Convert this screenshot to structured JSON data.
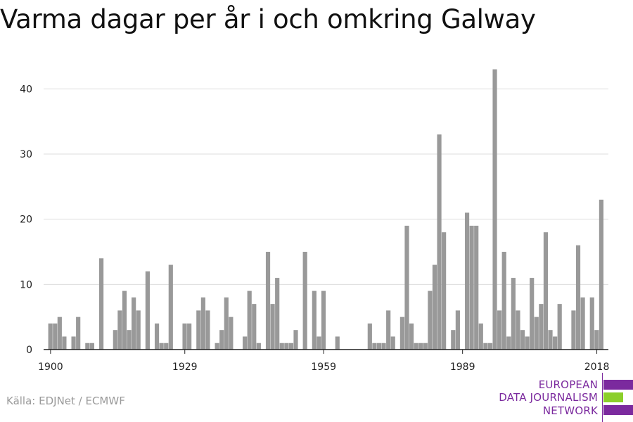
{
  "title": "Varma dagar per år i och omkring Galway",
  "source": "Källa: EDJNet / ECMWF",
  "logo": {
    "line1": "EUROPEAN",
    "line2": "DATA JOURNALISM",
    "line3": "NETWORK",
    "colors": {
      "purple": "#7b2a9e",
      "green": "#8bcf2a"
    }
  },
  "colors": {
    "bar": "#999999",
    "grid": "#dddddd",
    "axis": "#222222"
  },
  "chart_data": {
    "type": "bar",
    "title": "Varma dagar per år i och omkring Galway",
    "xlabel": "",
    "ylabel": "",
    "ylim": [
      0,
      45
    ],
    "yticks": [
      0,
      10,
      20,
      30,
      40
    ],
    "xlim": [
      1899,
      2020
    ],
    "xticks": [
      1900,
      1929,
      1959,
      1989,
      2018
    ],
    "grid": true,
    "series": [
      {
        "x": [
          1900,
          1901,
          1902,
          1903,
          1905,
          1906,
          1908,
          1909,
          1911,
          1914,
          1915,
          1916,
          1917,
          1918,
          1919,
          1921,
          1923,
          1924,
          1925,
          1926,
          1929,
          1930,
          1932,
          1933,
          1934,
          1936,
          1937,
          1938,
          1939,
          1942,
          1943,
          1944,
          1945,
          1947,
          1948,
          1949,
          1950,
          1951,
          1952,
          1953,
          1955,
          1957,
          1958,
          1959,
          1962,
          1969,
          1970,
          1971,
          1972,
          1973,
          1974,
          1976,
          1977,
          1978,
          1979,
          1980,
          1981,
          1982,
          1983,
          1984,
          1985,
          1987,
          1988,
          1990,
          1991,
          1992,
          1993,
          1994,
          1995,
          1996,
          1997,
          1998,
          1999,
          2000,
          2001,
          2002,
          2003,
          2004,
          2005,
          2006,
          2007,
          2008,
          2009,
          2010,
          2013,
          2014,
          2015,
          2017,
          2018,
          2019
        ],
        "values": [
          4,
          4,
          5,
          2,
          2,
          5,
          1,
          1,
          14,
          3,
          6,
          9,
          3,
          8,
          6,
          12,
          4,
          1,
          1,
          13,
          4,
          4,
          6,
          8,
          6,
          1,
          3,
          8,
          5,
          2,
          9,
          7,
          1,
          15,
          7,
          11,
          1,
          1,
          1,
          3,
          15,
          9,
          2,
          9,
          2,
          4,
          1,
          1,
          1,
          6,
          2,
          5,
          19,
          4,
          1,
          1,
          1,
          9,
          13,
          33,
          18,
          3,
          6,
          21,
          19,
          19,
          4,
          1,
          1,
          43,
          6,
          15,
          2,
          11,
          6,
          3,
          2,
          11,
          5,
          7,
          18,
          3,
          2,
          7,
          6,
          16,
          8,
          8,
          3,
          23
        ]
      }
    ]
  }
}
